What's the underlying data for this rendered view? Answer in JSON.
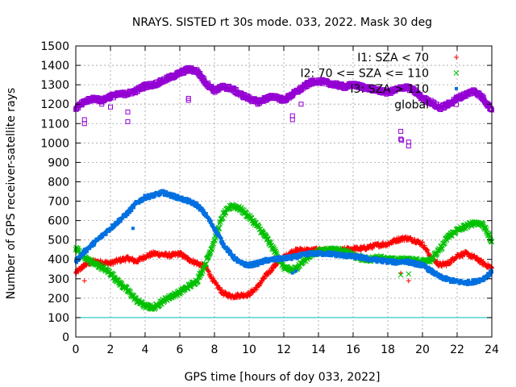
{
  "chart_data": {
    "type": "scatter",
    "title": "NRAYS. SISTED rt 30s mode. 033, 2022. Mask 30 deg",
    "xlabel": "GPS time [hours of doy 033, 2022]",
    "ylabel": "Number of GPS receiver-satellite rays",
    "xlim": [
      0,
      24
    ],
    "ylim": [
      0,
      1500
    ],
    "xticks": [
      0,
      2,
      4,
      6,
      8,
      10,
      12,
      14,
      16,
      18,
      20,
      22,
      24
    ],
    "yticks": [
      0,
      100,
      200,
      300,
      400,
      500,
      600,
      700,
      800,
      900,
      1000,
      1100,
      1200,
      1300,
      1400,
      1500
    ],
    "grid": true,
    "legend_position": "top-right",
    "reference_line": {
      "y": 100,
      "color": "#00c0c0"
    },
    "series": [
      {
        "name": "I1: SZA < 70",
        "marker": "plus",
        "color": "#ff0000",
        "x": [
          0,
          0.5,
          1,
          1.5,
          2,
          2.5,
          3,
          3.5,
          4,
          4.5,
          5,
          5.5,
          6,
          6.5,
          7,
          7.5,
          8,
          8.5,
          9,
          9.5,
          10,
          10.5,
          11,
          11.5,
          12,
          12.5,
          13,
          13.5,
          14,
          14.5,
          15,
          15.5,
          16,
          16.5,
          17,
          17.5,
          18,
          18.5,
          19,
          19.5,
          20,
          20.5,
          21,
          21.5,
          22,
          22.5,
          23,
          23.5,
          24
        ],
        "y": [
          330,
          370,
          390,
          385,
          380,
          395,
          405,
          390,
          415,
          430,
          425,
          420,
          430,
          400,
          380,
          360,
          280,
          225,
          210,
          215,
          220,
          260,
          320,
          370,
          410,
          440,
          450,
          445,
          450,
          445,
          440,
          450,
          455,
          455,
          465,
          475,
          480,
          500,
          510,
          500,
          480,
          410,
          370,
          380,
          420,
          430,
          410,
          380,
          355
        ]
      },
      {
        "name": "I2: 70 <= SZA <= 110",
        "marker": "cross",
        "color": "#00c000",
        "x": [
          0,
          0.5,
          1,
          1.5,
          2,
          2.5,
          3,
          3.5,
          4,
          4.5,
          5,
          5.5,
          6,
          6.5,
          7,
          7.5,
          8,
          8.5,
          9,
          9.5,
          10,
          10.5,
          11,
          11.5,
          12,
          12.5,
          13,
          13.5,
          14,
          14.5,
          15,
          15.5,
          16,
          16.5,
          17,
          17.5,
          18,
          18.5,
          19,
          19.5,
          20,
          20.5,
          21,
          21.5,
          22,
          22.5,
          23,
          23.5,
          24
        ],
        "y": [
          460,
          410,
          380,
          360,
          330,
          280,
          240,
          190,
          160,
          150,
          185,
          210,
          230,
          260,
          290,
          380,
          500,
          630,
          680,
          660,
          620,
          570,
          510,
          440,
          360,
          340,
          380,
          420,
          440,
          450,
          450,
          440,
          420,
          405,
          400,
          410,
          400,
          395,
          400,
          395,
          390,
          400,
          450,
          520,
          550,
          570,
          590,
          580,
          490
        ]
      },
      {
        "name": "I3: SZA > 110",
        "marker": "square",
        "color": "#0070e0",
        "x": [
          0,
          0.5,
          1,
          1.5,
          2,
          2.5,
          3,
          3.5,
          4,
          4.5,
          5,
          5.5,
          6,
          6.5,
          7,
          7.5,
          8,
          8.5,
          9,
          9.5,
          10,
          10.5,
          11,
          11.5,
          12,
          12.5,
          13,
          13.5,
          14,
          14.5,
          15,
          15.5,
          16,
          16.5,
          17,
          17.5,
          18,
          18.5,
          19,
          19.5,
          20,
          20.5,
          21,
          21.5,
          22,
          22.5,
          23,
          23.5,
          24
        ],
        "y": [
          390,
          440,
          480,
          520,
          560,
          600,
          640,
          690,
          720,
          730,
          745,
          730,
          715,
          700,
          680,
          630,
          560,
          480,
          420,
          380,
          370,
          380,
          395,
          400,
          405,
          410,
          420,
          430,
          430,
          430,
          425,
          420,
          415,
          410,
          400,
          395,
          390,
          385,
          390,
          380,
          370,
          340,
          310,
          295,
          285,
          280,
          285,
          300,
          335
        ]
      },
      {
        "name": "global",
        "marker": "square-open",
        "color": "#9400d3",
        "x": [
          0,
          0.5,
          1,
          1.5,
          2,
          2.5,
          3,
          3.5,
          4,
          4.5,
          5,
          5.5,
          6,
          6.5,
          7,
          7.5,
          8,
          8.5,
          9,
          9.5,
          10,
          10.5,
          11,
          11.5,
          12,
          12.5,
          13,
          13.5,
          14,
          14.5,
          15,
          15.5,
          16,
          16.5,
          17,
          17.5,
          18,
          18.5,
          19,
          19.5,
          20,
          20.5,
          21,
          21.5,
          22,
          22.5,
          23,
          23.5,
          24
        ],
        "y": [
          1180,
          1210,
          1230,
          1220,
          1240,
          1250,
          1255,
          1270,
          1295,
          1300,
          1320,
          1340,
          1360,
          1380,
          1370,
          1310,
          1270,
          1290,
          1280,
          1250,
          1230,
          1210,
          1230,
          1240,
          1220,
          1250,
          1280,
          1310,
          1320,
          1310,
          1300,
          1290,
          1300,
          1290,
          1280,
          1270,
          1260,
          1275,
          1290,
          1270,
          1230,
          1210,
          1180,
          1200,
          1230,
          1250,
          1270,
          1230,
          1170
        ]
      }
    ],
    "outliers": {
      "global": [
        [
          0.5,
          1100
        ],
        [
          0.5,
          1120
        ],
        [
          1.5,
          1200
        ],
        [
          2,
          1185
        ],
        [
          3,
          1110
        ],
        [
          3,
          1160
        ],
        [
          6.5,
          1220
        ],
        [
          6.5,
          1230
        ],
        [
          12.5,
          1120
        ],
        [
          12.5,
          1140
        ],
        [
          13,
          1200
        ],
        [
          18.75,
          1060
        ],
        [
          18.75,
          1020
        ],
        [
          18.8,
          1015
        ],
        [
          19.2,
          1005
        ],
        [
          19.2,
          985
        ]
      ],
      "I1: SZA < 70": [
        [
          0.5,
          290
        ],
        [
          6.2,
          255
        ],
        [
          19.2,
          290
        ],
        [
          18.75,
          330
        ]
      ],
      "I2: 70 <= SZA <= 110": [
        [
          18.75,
          320
        ],
        [
          19.2,
          325
        ]
      ],
      "I3: SZA > 110": [
        [
          3.3,
          560
        ],
        [
          12.5,
          330
        ],
        [
          12.7,
          340
        ]
      ]
    }
  }
}
